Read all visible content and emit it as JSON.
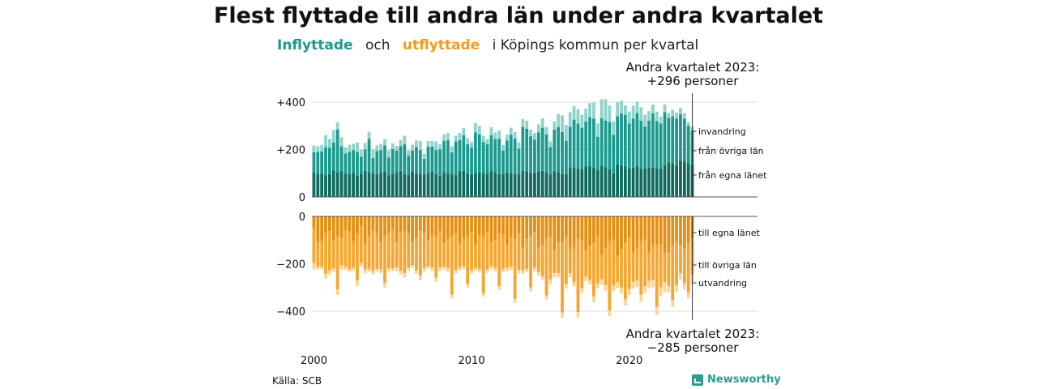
{
  "title": "Flest flyttade till andra län under andra kvartalet",
  "subtitle": {
    "in_word": "Inflyttade",
    "connector": "och",
    "out_word": "utflyttade",
    "rest": "i Köpings kommun per kvartal"
  },
  "annotation_top": {
    "line1": "Andra kvartalet 2023:",
    "line2": "+296 personer"
  },
  "annotation_bottom": {
    "line1": "Andra kvartalet 2023:",
    "line2": "−285 personer"
  },
  "source": "Källa: SCB",
  "brand": "Newsworthy",
  "colors": {
    "in_own": "#0e6b60",
    "in_other": "#1a9a8e",
    "in_intl": "#8fd3cc",
    "out_own": "#e58e10",
    "out_other": "#f7a52e",
    "out_intl": "#fbd49a",
    "grid": "#dddddd",
    "axis": "#555555"
  },
  "chart_data": {
    "type": "bar",
    "stacked": true,
    "x_start": "2000 Q1",
    "x_end": "2023 Q2",
    "x_tick_labels": [
      "2000",
      "2010",
      "2020"
    ],
    "y_tick_labels": [
      "+400",
      "+200",
      "0",
      "0",
      "−200",
      "−400"
    ],
    "series_labels_in": [
      "invandring",
      "från övriga län",
      "från egna länet"
    ],
    "series_labels_out": [
      "till egna länet",
      "till övriga län",
      "utvandring"
    ],
    "ylim_in": [
      0,
      450
    ],
    "ylim_out": [
      -430,
      0
    ],
    "in_own": [
      105,
      98,
      100,
      92,
      96,
      112,
      105,
      110,
      100,
      96,
      102,
      90,
      98,
      110,
      105,
      100,
      94,
      102,
      108,
      92,
      98,
      105,
      110,
      96,
      92,
      106,
      100,
      98,
      95,
      102,
      108,
      96,
      90,
      104,
      100,
      94,
      92,
      108,
      110,
      98,
      96,
      102,
      104,
      100,
      98,
      110,
      104,
      96,
      96,
      104,
      102,
      98,
      94,
      112,
      108,
      100,
      100,
      106,
      110,
      104,
      94,
      110,
      104,
      98,
      96,
      122,
      126,
      120,
      116,
      128,
      130,
      124,
      114,
      132,
      126,
      116,
      100,
      138,
      134,
      128,
      120,
      124,
      130,
      118,
      118,
      124,
      126,
      120,
      118,
      134,
      146,
      140,
      134,
      152,
      150,
      140,
      135
    ],
    "in_other": [
      84,
      92,
      92,
      118,
      112,
      118,
      180,
      104,
      84,
      94,
      96,
      100,
      72,
      90,
      140,
      64,
      100,
      96,
      110,
      74,
      104,
      90,
      104,
      126,
      82,
      90,
      110,
      100,
      66,
      110,
      104,
      102,
      110,
      132,
      140,
      94,
      142,
      132,
      150,
      124,
      112,
      170,
      160,
      132,
      124,
      150,
      140,
      150,
      100,
      134,
      160,
      148,
      110,
      182,
      180,
      156,
      142,
      166,
      182,
      160,
      116,
      174,
      190,
      176,
      140,
      174,
      200,
      190,
      176,
      190,
      206,
      206,
      140,
      200,
      196,
      200,
      162,
      202,
      218,
      218,
      190,
      206,
      224,
      204,
      180,
      198,
      226,
      200,
      192,
      224,
      188,
      200,
      196,
      198,
      180,
      160,
      145
    ],
    "in_intl": [
      28,
      24,
      28,
      50,
      36,
      52,
      30,
      38,
      26,
      30,
      26,
      40,
      28,
      28,
      30,
      36,
      24,
      26,
      26,
      30,
      24,
      20,
      26,
      36,
      22,
      24,
      28,
      38,
      22,
      24,
      24,
      36,
      22,
      28,
      30,
      26,
      24,
      30,
      30,
      26,
      24,
      40,
      36,
      26,
      22,
      34,
      28,
      34,
      24,
      24,
      30,
      28,
      26,
      34,
      34,
      28,
      28,
      34,
      40,
      30,
      24,
      34,
      56,
      70,
      68,
      62,
      58,
      60,
      54,
      54,
      60,
      68,
      56,
      80,
      90,
      70,
      56,
      60,
      54,
      40,
      50,
      56,
      48,
      56,
      48,
      40,
      38,
      40,
      28,
      32,
      20,
      28,
      26,
      26,
      24,
      16,
      16
    ],
    "out_own": [
      -48,
      -110,
      -104,
      -70,
      -62,
      -100,
      -82,
      -90,
      -58,
      -64,
      -104,
      -74,
      -42,
      -116,
      -80,
      -60,
      -70,
      -108,
      -82,
      -70,
      -56,
      -110,
      -66,
      -64,
      -70,
      -106,
      -92,
      -62,
      -68,
      -100,
      -78,
      -84,
      -62,
      -112,
      -96,
      -80,
      -70,
      -116,
      -92,
      -84,
      -66,
      -118,
      -78,
      -88,
      -66,
      -106,
      -100,
      -72,
      -78,
      -122,
      -88,
      -92,
      -70,
      -130,
      -96,
      -80,
      -66,
      -132,
      -120,
      -92,
      -88,
      -142,
      -110,
      -110,
      -88,
      -138,
      -130,
      -94,
      -102,
      -146,
      -124,
      -110,
      -86,
      -162,
      -132,
      -104,
      -98,
      -166,
      -138,
      -112,
      -92,
      -152,
      -136,
      -104,
      -98,
      -154,
      -118,
      -118,
      -118,
      -154,
      -152,
      -122,
      -106,
      -120,
      -136,
      -110,
      -95
    ],
    "out_other": [
      -148,
      -104,
      -108,
      -172,
      -166,
      -120,
      -226,
      -118,
      -154,
      -160,
      -114,
      -196,
      -154,
      -108,
      -142,
      -170,
      -152,
      -116,
      -198,
      -150,
      -164,
      -106,
      -164,
      -176,
      -146,
      -100,
      -136,
      -188,
      -150,
      -110,
      -138,
      -174,
      -154,
      -100,
      -122,
      -250,
      -156,
      -100,
      -118,
      -200,
      -162,
      -100,
      -144,
      -236,
      -158,
      -104,
      -118,
      -222,
      -144,
      -96,
      -124,
      -256,
      -156,
      -98,
      -126,
      -220,
      -152,
      -102,
      -134,
      -242,
      -178,
      -98,
      -130,
      -296,
      -198,
      -102,
      -148,
      -310,
      -200,
      -108,
      -144,
      -228,
      -196,
      -104,
      -158,
      -292,
      -194,
      -112,
      -162,
      -238,
      -214,
      -124,
      -134,
      -226,
      -196,
      -118,
      -150,
      -264,
      -182,
      -124,
      -140,
      -230,
      -184,
      -120,
      -146,
      -212,
      -150
    ],
    "out_intl": [
      -28,
      -10,
      -12,
      -20,
      -18,
      -14,
      -22,
      -16,
      -14,
      -10,
      -12,
      -24,
      -14,
      -16,
      -12,
      -14,
      -12,
      -16,
      -20,
      -14,
      -12,
      -14,
      -16,
      -18,
      -12,
      -12,
      -14,
      -20,
      -14,
      -12,
      -14,
      -18,
      -14,
      -12,
      -16,
      -14,
      -14,
      -14,
      -14,
      -16,
      -14,
      -12,
      -14,
      -14,
      -14,
      -14,
      -14,
      -16,
      -14,
      -14,
      -14,
      -16,
      -14,
      -14,
      -14,
      -16,
      -14,
      -14,
      -14,
      -16,
      -18,
      -16,
      -18,
      -22,
      -18,
      -18,
      -18,
      -24,
      -20,
      -20,
      -20,
      -24,
      -22,
      -22,
      -24,
      -26,
      -24,
      -24,
      -26,
      -26,
      -26,
      -28,
      -28,
      -30,
      -30,
      -32,
      -32,
      -34,
      -34,
      -40,
      -30,
      -30,
      -28,
      -28,
      -26,
      -24,
      -40
    ]
  }
}
